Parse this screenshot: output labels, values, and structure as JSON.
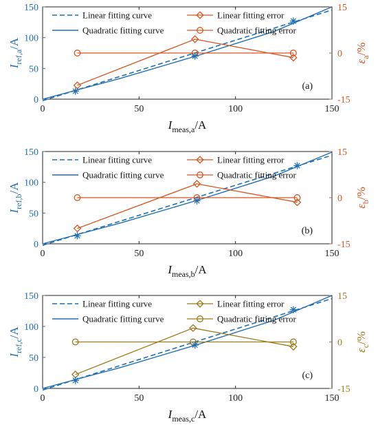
{
  "colors": {
    "blue": "#1f6fb5",
    "orange": "#d9541e",
    "olive": "#9c7a18",
    "axis": "#222222"
  },
  "legend": {
    "linear_curve": "Linear fitting curve",
    "quadratic_curve": "Quadratic fitting curve",
    "linear_error": "Linear fitting error",
    "quadratic_error": "Quadratic fitting error"
  },
  "chart_data": [
    {
      "type": "line",
      "panel_label": "(a)",
      "xlabel": {
        "main": "I",
        "sub": "meas,a",
        "unit": "/A"
      },
      "ylabel": {
        "main": "I",
        "sub": "ref,a",
        "unit": "/A"
      },
      "y2label": {
        "main": "ε",
        "sub": "a",
        "unit": "/%"
      },
      "xlim": [
        0,
        150
      ],
      "ylim": [
        0,
        150
      ],
      "y2lim": [
        -15,
        15
      ],
      "xticks": [
        "0",
        "50",
        "100",
        "150"
      ],
      "yticks": [
        "0",
        "50",
        "100",
        "150"
      ],
      "y2ticks": [
        "-15",
        "0",
        "15"
      ],
      "error_color": "orange",
      "measured_points": [
        [
          17,
          13
        ],
        [
          79,
          70
        ],
        [
          130,
          127
        ]
      ],
      "linear_fit_line": [
        [
          0,
          -2.5
        ],
        [
          150,
          145
        ]
      ],
      "quadratic_fit_line": [
        [
          0,
          0
        ],
        [
          40,
          33.5
        ],
        [
          80,
          70.5
        ],
        [
          120,
          110
        ],
        [
          150,
          150
        ]
      ],
      "linear_error": [
        [
          18,
          -10.5
        ],
        [
          79,
          4.5
        ],
        [
          130,
          -1.5
        ]
      ],
      "quadratic_error": [
        [
          18,
          0
        ],
        [
          79,
          0
        ],
        [
          130,
          0
        ]
      ],
      "legend_position": "top"
    },
    {
      "type": "line",
      "panel_label": "(b)",
      "xlabel": {
        "main": "I",
        "sub": "meas,b",
        "unit": "/A"
      },
      "ylabel": {
        "main": "I",
        "sub": "ref,b",
        "unit": "/A"
      },
      "y2label": {
        "main": "ε",
        "sub": "b",
        "unit": "/%"
      },
      "xlim": [
        0,
        150
      ],
      "ylim": [
        0,
        150
      ],
      "y2lim": [
        -15,
        15
      ],
      "xticks": [
        "0",
        "50",
        "100",
        "150"
      ],
      "yticks": [
        "0",
        "50",
        "100",
        "150"
      ],
      "y2ticks": [
        "-15",
        "0",
        "15"
      ],
      "error_color": "orange",
      "measured_points": [
        [
          18,
          13
        ],
        [
          80,
          70
        ],
        [
          132,
          127
        ]
      ],
      "linear_fit_line": [
        [
          0,
          -2.5
        ],
        [
          150,
          144
        ]
      ],
      "quadratic_fit_line": [
        [
          0,
          0
        ],
        [
          40,
          33.5
        ],
        [
          80,
          70.5
        ],
        [
          120,
          110
        ],
        [
          150,
          149
        ]
      ],
      "linear_error": [
        [
          18,
          -10
        ],
        [
          80,
          4.5
        ],
        [
          132,
          -1.5
        ]
      ],
      "quadratic_error": [
        [
          18,
          0
        ],
        [
          80,
          0
        ],
        [
          132,
          0
        ]
      ],
      "legend_position": "top"
    },
    {
      "type": "line",
      "panel_label": "(c)",
      "xlabel": {
        "main": "I",
        "sub": "meas,c",
        "unit": "/A"
      },
      "ylabel": {
        "main": "I",
        "sub": "ref,c",
        "unit": "/A"
      },
      "y2label": {
        "main": "ε",
        "sub": "c",
        "unit": "/%"
      },
      "xlim": [
        0,
        150
      ],
      "ylim": [
        0,
        150
      ],
      "y2lim": [
        -15,
        15
      ],
      "xticks": [
        "0",
        "50",
        "100",
        "150"
      ],
      "yticks": [
        "0",
        "50",
        "100",
        "150"
      ],
      "y2ticks": [
        "-15",
        "0",
        "15"
      ],
      "error_color": "olive",
      "measured_points": [
        [
          17,
          13
        ],
        [
          79,
          70
        ],
        [
          130,
          127
        ]
      ],
      "linear_fit_line": [
        [
          0,
          -2.5
        ],
        [
          150,
          145
        ]
      ],
      "quadratic_fit_line": [
        [
          0,
          0
        ],
        [
          40,
          33.5
        ],
        [
          80,
          70.5
        ],
        [
          120,
          110
        ],
        [
          150,
          150
        ]
      ],
      "linear_error": [
        [
          17,
          -10.5
        ],
        [
          78,
          4.5
        ],
        [
          130,
          -1.5
        ]
      ],
      "quadratic_error": [
        [
          17,
          0
        ],
        [
          78,
          0
        ],
        [
          130,
          0
        ]
      ],
      "legend_position": "top"
    }
  ]
}
